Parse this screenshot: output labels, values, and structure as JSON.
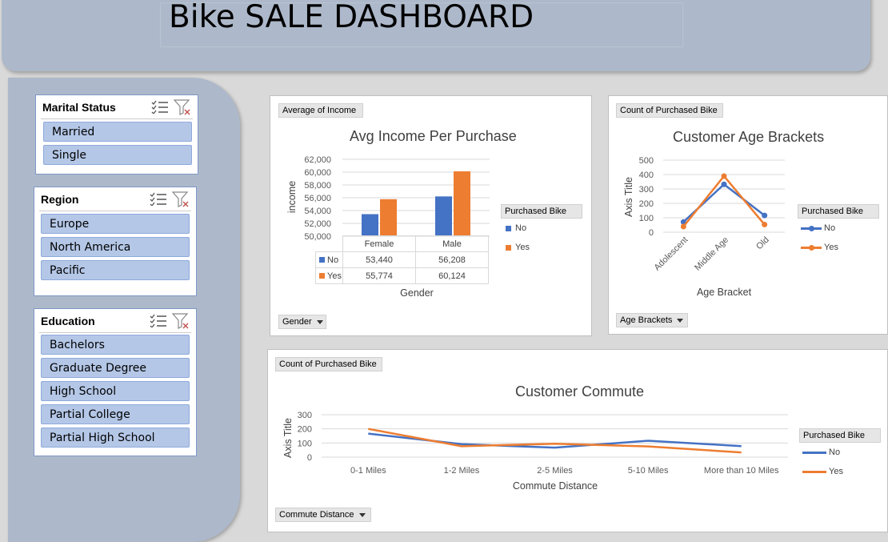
{
  "header": {
    "title": "Bike SALE DASHBOARD"
  },
  "slicers": {
    "marital": {
      "title": "Marital Status",
      "items": [
        "Married",
        "Single"
      ]
    },
    "region": {
      "title": "Region",
      "items": [
        "Europe",
        "North America",
        "Pacific"
      ]
    },
    "education": {
      "title": "Education",
      "items": [
        "Bachelors",
        "Graduate Degree",
        "High School",
        "Partial College",
        "Partial High School"
      ]
    }
  },
  "colors": {
    "no": "#4472c4",
    "yes": "#ed7d31",
    "accent": "#adb9ca",
    "slicer_item": "#b4c7e7"
  },
  "icons": {
    "multiselect": "multi-select-icon",
    "clear_filter": "clear-filter-icon",
    "dropdown": "dropdown-arrow-icon"
  },
  "charts": {
    "income": {
      "value_button": "Average of Income",
      "axis_button": "Gender",
      "legend_title": "Purchased Bike",
      "table_labels": {
        "no": "No",
        "yes": "Yes"
      },
      "table_values": {
        "female_no": "53,440",
        "female_yes": "55,774",
        "male_no": "56,208",
        "male_yes": "60,124"
      }
    },
    "age": {
      "value_button": "Count of Purchased Bike",
      "axis_button": "Age Brackets",
      "legend_title": "Purchased Bike"
    },
    "commute": {
      "value_button": "Count of Purchased Bike",
      "axis_button": "Commute Distance",
      "legend_title": "Purchased Bike"
    }
  },
  "chart_data": [
    {
      "type": "bar",
      "title": "Avg Income Per Purchase",
      "xlabel": "Gender",
      "ylabel": "income",
      "categories": [
        "Female",
        "Male"
      ],
      "series": [
        {
          "name": "No",
          "values": [
            53440,
            56208
          ]
        },
        {
          "name": "Yes",
          "values": [
            55774,
            60124
          ]
        }
      ],
      "ylim": [
        50000,
        62000
      ],
      "yticks": [
        "50,000",
        "52,000",
        "54,000",
        "56,000",
        "58,000",
        "60,000",
        "62,000"
      ],
      "grid": true,
      "legend": "right"
    },
    {
      "type": "line",
      "title": "Customer Age Brackets",
      "xlabel": "Age Bracket",
      "ylabel": "Axis Title",
      "categories": [
        "Adolescent",
        "Middle Age",
        "Old"
      ],
      "series": [
        {
          "name": "No",
          "values": [
            71,
            332,
            116
          ]
        },
        {
          "name": "Yes",
          "values": [
            39,
            389,
            53
          ]
        }
      ],
      "ylim": [
        0,
        500
      ],
      "yticks": [
        "0",
        "100",
        "200",
        "300",
        "400",
        "500"
      ],
      "grid": true,
      "legend": "right"
    },
    {
      "type": "line",
      "title": "Customer Commute",
      "xlabel": "Commute Distance",
      "ylabel": "Axis Title",
      "categories": [
        "0-1 Miles",
        "1-2 Miles",
        "2-5 Miles",
        "5-10 Miles",
        "More than 10 Miles"
      ],
      "series": [
        {
          "name": "No",
          "values": [
            166,
            92,
            67,
            116,
            78
          ]
        },
        {
          "name": "Yes",
          "values": [
            200,
            77,
            95,
            76,
            33
          ]
        }
      ],
      "ylim": [
        0,
        300
      ],
      "yticks": [
        "0",
        "100",
        "200",
        "300"
      ],
      "grid": true,
      "legend": "right"
    }
  ]
}
